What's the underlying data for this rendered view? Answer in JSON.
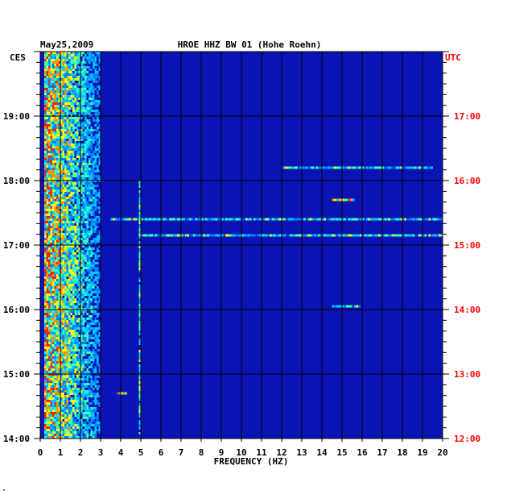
{
  "chart_data": {
    "type": "heatmap",
    "title": "HROE HHZ BW 01 (Hohe Roehn)",
    "date": "May25,2009",
    "xlabel": "FREQUENCY (HZ)",
    "xlim": [
      0,
      20
    ],
    "x_ticks": [
      "0",
      "1",
      "2",
      "3",
      "4",
      "5",
      "6",
      "7",
      "8",
      "9",
      "10",
      "11",
      "12",
      "13",
      "14",
      "15",
      "16",
      "17",
      "18",
      "19",
      "20"
    ],
    "left_axis": {
      "label": "CES",
      "range_hours": [
        14,
        20
      ],
      "ticks": [
        "19:00",
        "18:00",
        "17:00",
        "16:00",
        "15:00",
        "14:00"
      ],
      "tick_hours": [
        19,
        18,
        17,
        16,
        15,
        14
      ]
    },
    "right_axis": {
      "label": "UTC",
      "ticks": [
        "17:00",
        "16:00",
        "15:00",
        "14:00",
        "13:00",
        "12:00"
      ],
      "tick_hours": [
        19,
        18,
        17,
        16,
        15,
        14
      ],
      "color": "#ff0000"
    },
    "colors": {
      "background": "#0a14b4",
      "gridline": "#000000",
      "low": "#0000c8",
      "mid": "#00c8ff",
      "high": "#ffff00",
      "peak": "#ff2000"
    },
    "features": [
      {
        "name": "low-frequency energy band",
        "freq_hz": [
          0.2,
          3.0
        ],
        "hours": [
          14,
          20
        ],
        "intensity": "high"
      },
      {
        "name": "narrow line near 5 Hz",
        "freq_hz": [
          4.9,
          5.0
        ],
        "hours": [
          14,
          18
        ],
        "intensity": "medium"
      },
      {
        "name": "broadband streak",
        "freq_hz": [
          3.5,
          20
        ],
        "hours": [
          17.4,
          17.4
        ],
        "intensity": "medium"
      },
      {
        "name": "broadband streak",
        "freq_hz": [
          5,
          20
        ],
        "hours": [
          17.15,
          17.15
        ],
        "intensity": "medium"
      },
      {
        "name": "broadband streak",
        "freq_hz": [
          12,
          19.5
        ],
        "hours": [
          18.2,
          18.2
        ],
        "intensity": "medium"
      },
      {
        "name": "spot",
        "freq_hz": [
          14.5,
          15.5
        ],
        "hours": [
          17.7,
          17.7
        ],
        "intensity": "high"
      },
      {
        "name": "spot",
        "freq_hz": [
          14.5,
          15.8
        ],
        "hours": [
          16.05,
          16.05
        ],
        "intensity": "medium"
      },
      {
        "name": "spot",
        "freq_hz": [
          3.8,
          4.2
        ],
        "hours": [
          14.7,
          14.7
        ],
        "intensity": "high"
      }
    ]
  },
  "corner_mark": "\""
}
